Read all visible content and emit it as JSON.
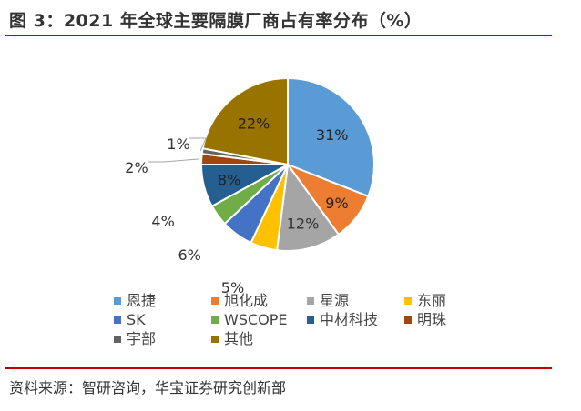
{
  "figure": {
    "title": "图 3：2021 年全球主要隔膜厂商占有率分布（%）",
    "source": "资料来源：智研咨询，华宝证券研究创新部"
  },
  "chart_data": {
    "type": "pie",
    "title": "",
    "legend_position": "bottom",
    "slices": [
      {
        "name": "恩捷",
        "value": 31,
        "label": "31%",
        "color": "#5B9BD5"
      },
      {
        "name": "旭化成",
        "value": 9,
        "label": "9%",
        "color": "#ED7D31"
      },
      {
        "name": "星源",
        "value": 12,
        "label": "12%",
        "color": "#A5A5A5"
      },
      {
        "name": "东丽",
        "value": 5,
        "label": "5%",
        "color": "#FFC000"
      },
      {
        "name": "SK",
        "value": 6,
        "label": "6%",
        "color": "#4472C4"
      },
      {
        "name": "WSCOPE",
        "value": 4,
        "label": "4%",
        "color": "#70AD47"
      },
      {
        "name": "中材科技",
        "value": 8,
        "label": "8%",
        "color": "#255E91"
      },
      {
        "name": "明珠",
        "value": 2,
        "label": "2%",
        "color": "#9E480E"
      },
      {
        "name": "宇部",
        "value": 1,
        "label": "1%",
        "color": "#636363"
      },
      {
        "name": "其他",
        "value": 22,
        "label": "22%",
        "color": "#997300"
      }
    ]
  }
}
